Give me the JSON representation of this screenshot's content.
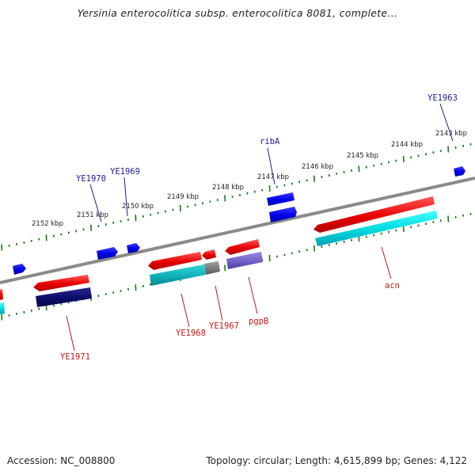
{
  "title": "Yersinia enterocolitica subsp. enterocolitica 8081, complete...",
  "footer": {
    "accession": "Accession: NC_008800",
    "info": "Topology: circular; Length: 4,615,899 bp; Genes: 4,122"
  },
  "colors": {
    "backbone": "#808080",
    "scale_ticks": "#1a7a1a",
    "forward_gene": "#0000ee",
    "reverse_gene": "#ee0000",
    "cds_cyan": "#00d0d8",
    "cds_navy": "#101070",
    "cds_gray": "#707070",
    "cds_lavender": "#7060c0",
    "forward_label": "#1a1aa0",
    "reverse_label": "#c01818"
  },
  "scale": {
    "unit": "kbp",
    "labels": [
      "2143 kbp",
      "2144 kbp",
      "2145 kbp",
      "2146 kbp",
      "2147 kbp",
      "2148 kbp",
      "2149 kbp",
      "2150 kbp",
      "2151 kbp",
      "2152 kbp"
    ]
  },
  "genes": {
    "forward_strand": [
      "ribA",
      "YE1963",
      "YE1969",
      "YE1970"
    ],
    "reverse_strand": [
      "acn",
      "pgpB",
      "YE1967",
      "YE1968",
      "YE1971"
    ]
  }
}
